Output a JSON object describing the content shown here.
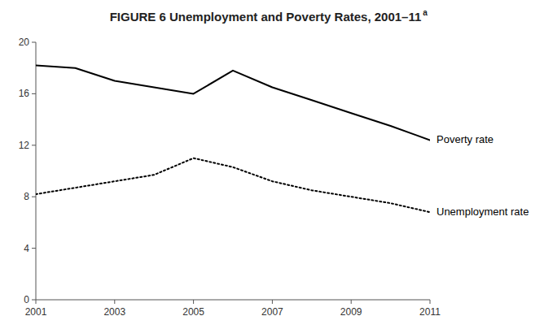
{
  "chart_data": {
    "type": "line",
    "title": "FIGURE 6 Unemployment and Poverty Rates, 2001–11",
    "title_superscript": "a",
    "x": [
      2001,
      2002,
      2003,
      2004,
      2005,
      2006,
      2007,
      2008,
      2009,
      2010,
      2011
    ],
    "series": [
      {
        "name": "Poverty rate",
        "color": "#000000",
        "line_style": "solid",
        "values": [
          18.2,
          18.0,
          17.0,
          16.5,
          16.0,
          17.8,
          16.5,
          15.5,
          14.5,
          13.5,
          12.4
        ]
      },
      {
        "name": "Unemployment rate",
        "color": "#000000",
        "line_style": "dotted",
        "values": [
          8.2,
          8.7,
          9.2,
          9.7,
          11.0,
          10.3,
          9.2,
          8.5,
          8.0,
          7.5,
          6.8
        ]
      }
    ],
    "xlim": [
      2001,
      2011
    ],
    "ylim": [
      0,
      20
    ],
    "xticks": [
      2001,
      2003,
      2005,
      2007,
      2009,
      2011
    ],
    "yticks": [
      0,
      4,
      8,
      12,
      16,
      20
    ],
    "grid": false
  }
}
